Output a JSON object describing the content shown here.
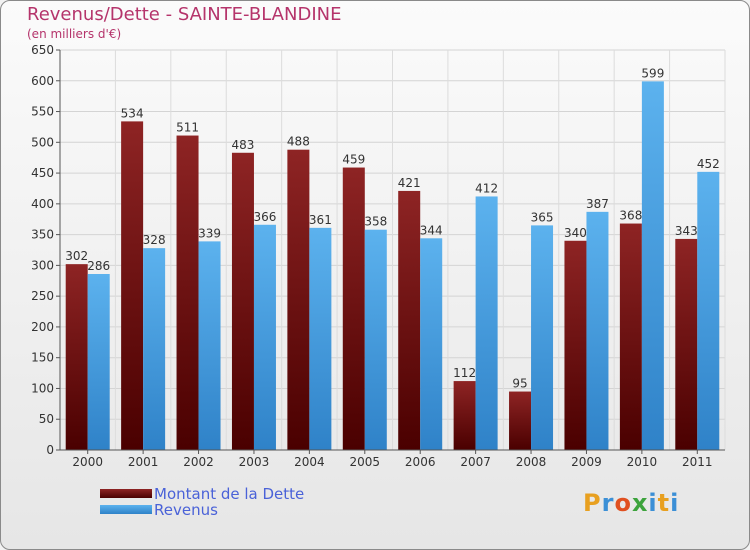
{
  "header": {
    "title": "Revenus/Dette - SAINTE-BLANDINE",
    "subtitle": "(en milliers d'€)"
  },
  "legend": {
    "items": [
      {
        "label": "Montant de la Dette",
        "color": "#6b0f0f"
      },
      {
        "label": "Revenus",
        "color": "#4aa3e6"
      }
    ]
  },
  "logo": {
    "text": "Proxiti",
    "letters": [
      "P",
      "r",
      "o",
      "x",
      "i",
      "t",
      "i"
    ],
    "colors": [
      "#e8a020",
      "#3b8fd6",
      "#e05020",
      "#3ca33c",
      "#3b8fd6",
      "#e8a020",
      "#3b8fd6"
    ]
  },
  "chart_data": {
    "type": "bar",
    "categories": [
      "2000",
      "2001",
      "2002",
      "2003",
      "2004",
      "2005",
      "2006",
      "2007",
      "2008",
      "2009",
      "2010",
      "2011"
    ],
    "series": [
      {
        "name": "Montant de la Dette",
        "values": [
          302,
          534,
          511,
          483,
          488,
          459,
          421,
          112,
          95,
          340,
          368,
          343
        ],
        "color": "#7a1616"
      },
      {
        "name": "Revenus",
        "values": [
          286,
          328,
          339,
          366,
          361,
          358,
          344,
          412,
          365,
          387,
          599,
          452
        ],
        "color": "#4aa3e6"
      }
    ],
    "ylim": [
      0,
      650
    ],
    "yticks": [
      0,
      50,
      100,
      150,
      200,
      250,
      300,
      350,
      400,
      450,
      500,
      550,
      600,
      650
    ],
    "grid": true,
    "legend_position": "bottom-left"
  }
}
